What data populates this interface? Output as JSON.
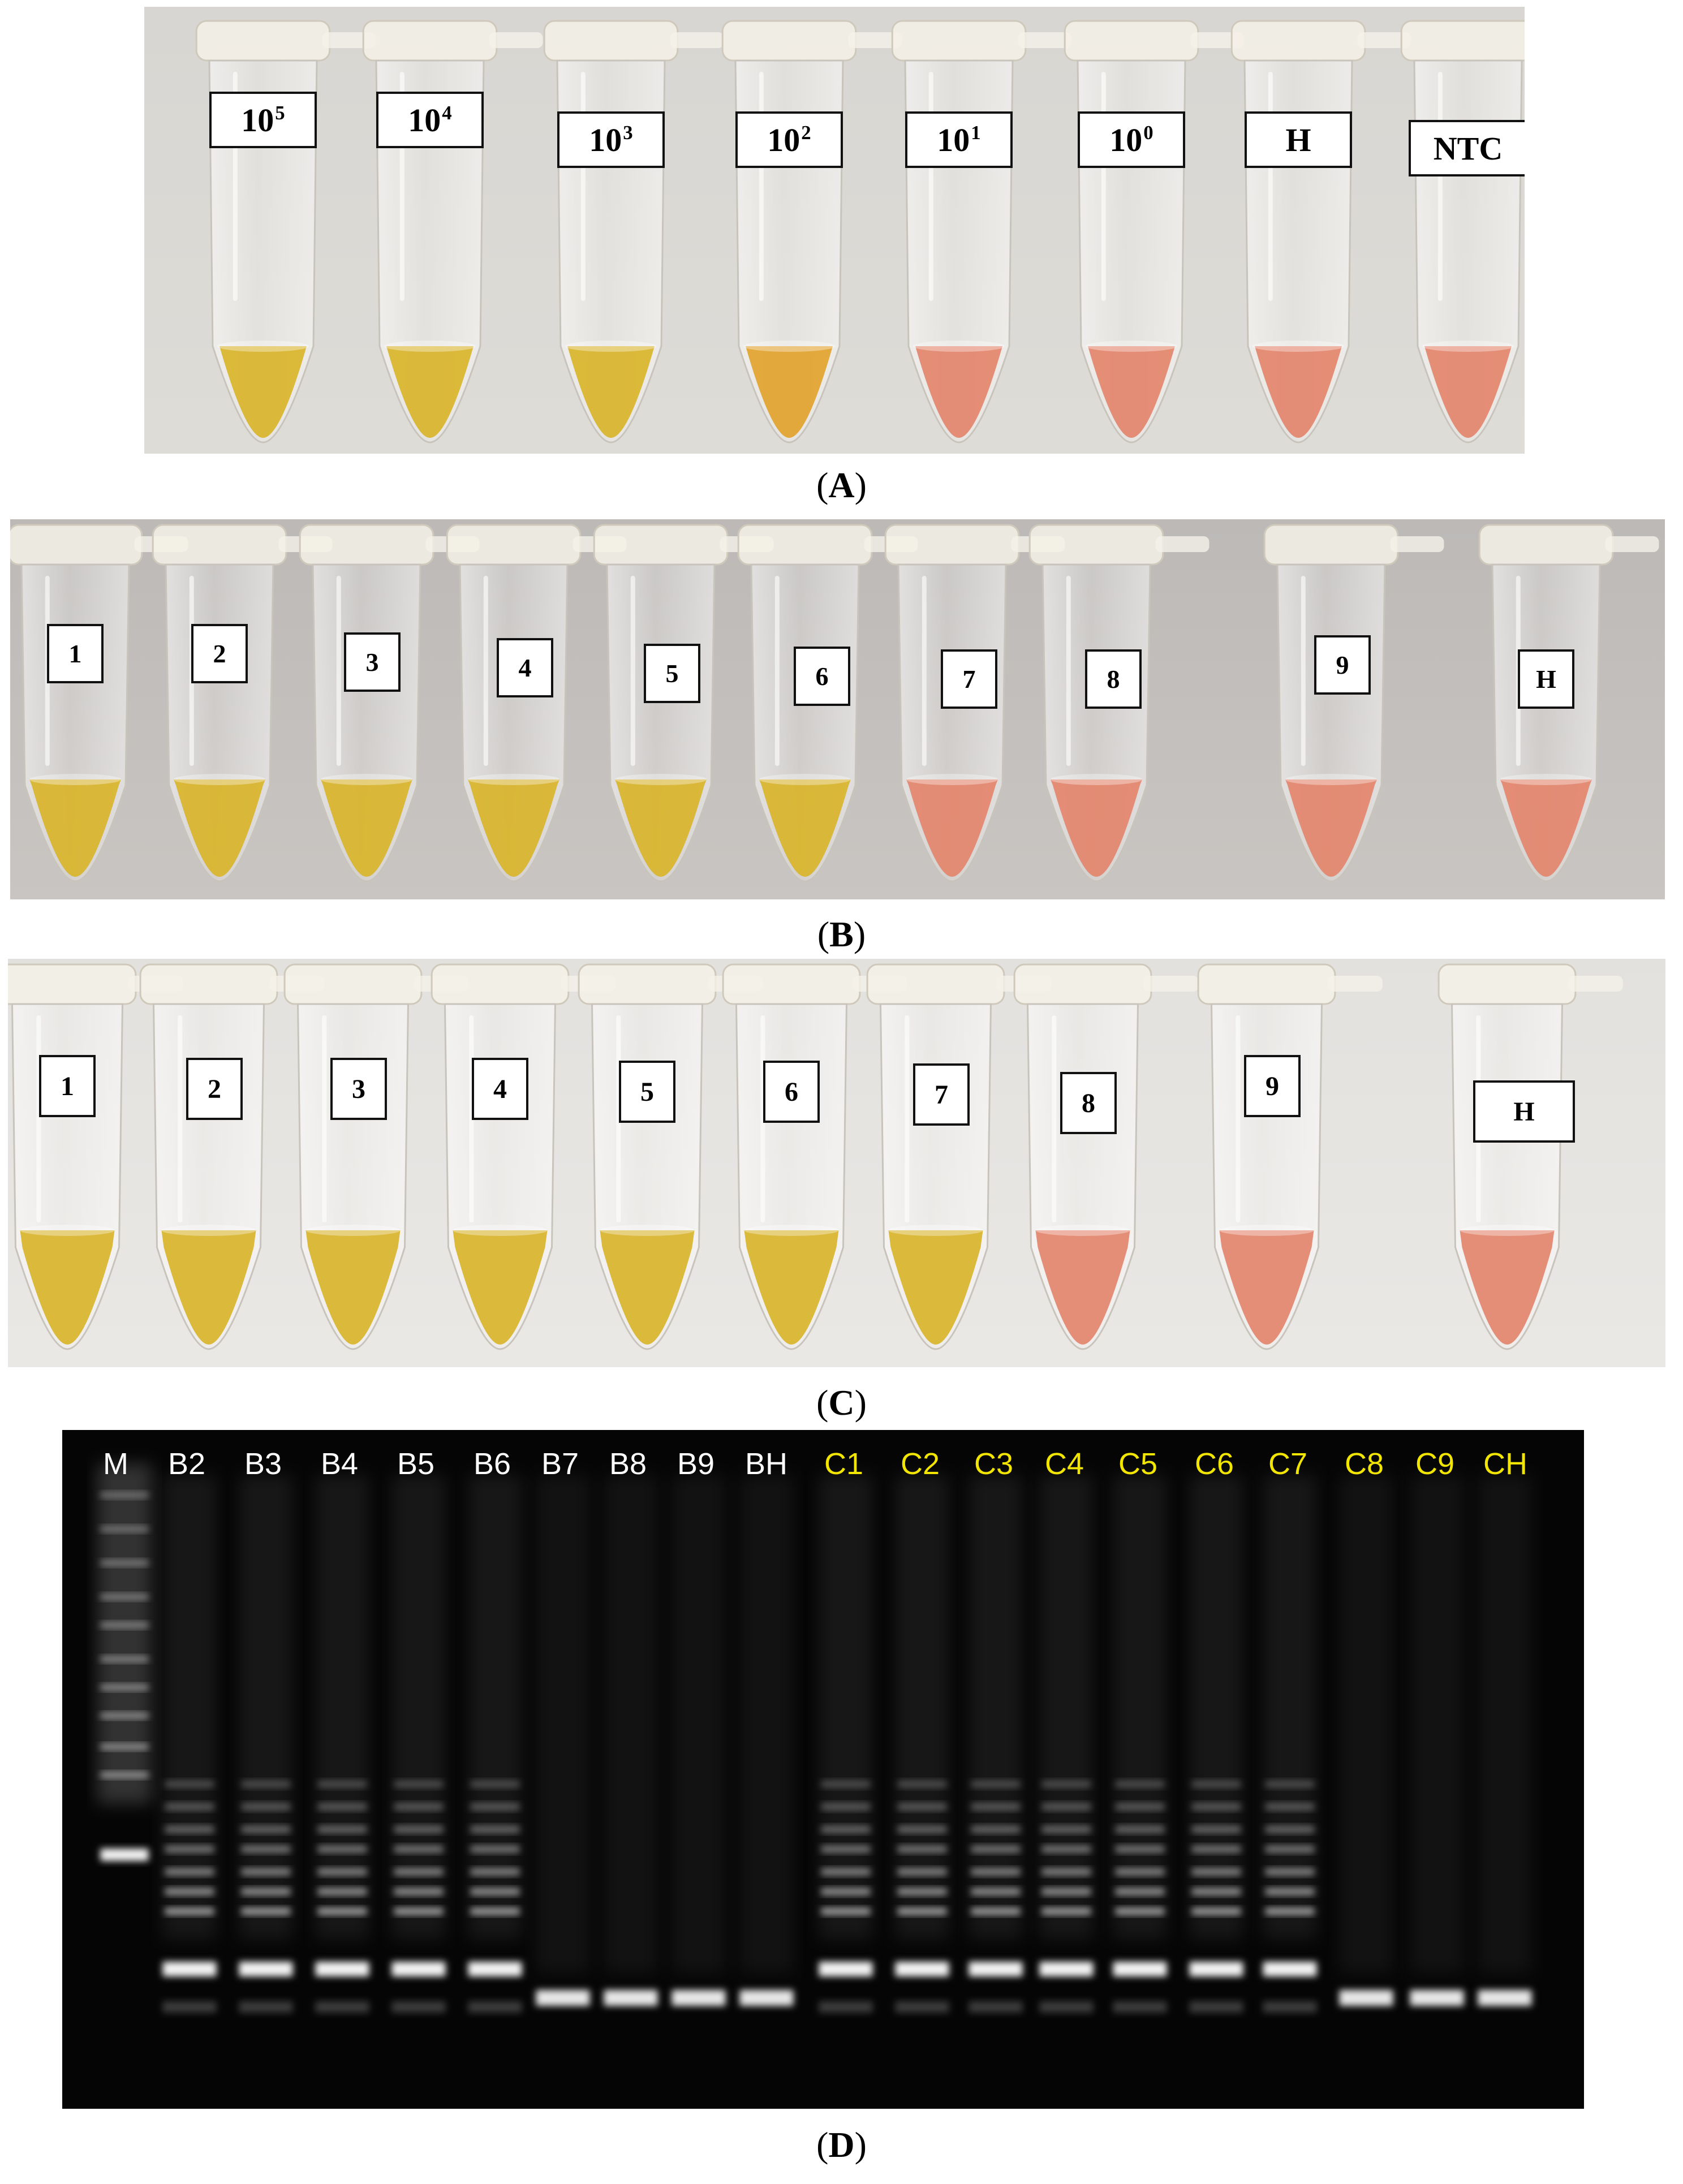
{
  "colors": {
    "yellow": "#d9b42a",
    "orange_yellow": "#e2a32e",
    "pink": "#e4866c",
    "gel_background": "#000000",
    "gel_label_white": "#ffffff",
    "gel_label_yellow": "#f2e600",
    "band": "#ffffff"
  },
  "panel_a": {
    "caption_letter": "A",
    "tubes": [
      {
        "base": "10",
        "exp": "5",
        "liquid": "yellow"
      },
      {
        "base": "10",
        "exp": "4",
        "liquid": "yellow"
      },
      {
        "base": "10",
        "exp": "3",
        "liquid": "yellow"
      },
      {
        "base": "10",
        "exp": "2",
        "liquid": "orange_yellow"
      },
      {
        "base": "10",
        "exp": "1",
        "liquid": "pink"
      },
      {
        "base": "10",
        "exp": "0",
        "liquid": "pink"
      },
      {
        "base": "H",
        "exp": "",
        "liquid": "pink"
      },
      {
        "base": "NTC",
        "exp": "",
        "liquid": "pink"
      }
    ]
  },
  "panel_b": {
    "caption_letter": "B",
    "tubes": [
      {
        "label": "1",
        "liquid": "yellow"
      },
      {
        "label": "2",
        "liquid": "yellow"
      },
      {
        "label": "3",
        "liquid": "yellow"
      },
      {
        "label": "4",
        "liquid": "yellow"
      },
      {
        "label": "5",
        "liquid": "yellow"
      },
      {
        "label": "6",
        "liquid": "yellow"
      },
      {
        "label": "7",
        "liquid": "pink"
      },
      {
        "label": "8",
        "liquid": "pink"
      },
      {
        "label": "9",
        "liquid": "pink"
      },
      {
        "label": "H",
        "liquid": "pink"
      }
    ]
  },
  "panel_c": {
    "caption_letter": "C",
    "tubes": [
      {
        "label": "1",
        "liquid": "yellow"
      },
      {
        "label": "2",
        "liquid": "yellow"
      },
      {
        "label": "3",
        "liquid": "yellow"
      },
      {
        "label": "4",
        "liquid": "yellow"
      },
      {
        "label": "5",
        "liquid": "yellow"
      },
      {
        "label": "6",
        "liquid": "yellow"
      },
      {
        "label": "7",
        "liquid": "yellow"
      },
      {
        "label": "8",
        "liquid": "pink"
      },
      {
        "label": "9",
        "liquid": "pink"
      },
      {
        "label": "H",
        "liquid": "pink"
      }
    ]
  },
  "panel_d": {
    "caption_letter": "D",
    "lanes": [
      {
        "label": "M",
        "color": "white",
        "pattern": "marker"
      },
      {
        "label": "B2",
        "color": "white",
        "pattern": "ladder"
      },
      {
        "label": "B3",
        "color": "white",
        "pattern": "ladder"
      },
      {
        "label": "B4",
        "color": "white",
        "pattern": "ladder"
      },
      {
        "label": "B5",
        "color": "white",
        "pattern": "ladder"
      },
      {
        "label": "B6",
        "color": "white",
        "pattern": "ladder"
      },
      {
        "label": "B7",
        "color": "white",
        "pattern": "primer"
      },
      {
        "label": "B8",
        "color": "white",
        "pattern": "primer"
      },
      {
        "label": "B9",
        "color": "white",
        "pattern": "primer"
      },
      {
        "label": "BH",
        "color": "white",
        "pattern": "primer"
      },
      {
        "label": "C1",
        "color": "yellow",
        "pattern": "ladder"
      },
      {
        "label": "C2",
        "color": "yellow",
        "pattern": "ladder"
      },
      {
        "label": "C3",
        "color": "yellow",
        "pattern": "ladder"
      },
      {
        "label": "C4",
        "color": "yellow",
        "pattern": "ladder"
      },
      {
        "label": "C5",
        "color": "yellow",
        "pattern": "ladder"
      },
      {
        "label": "C6",
        "color": "yellow",
        "pattern": "ladder"
      },
      {
        "label": "C7",
        "color": "yellow",
        "pattern": "ladder"
      },
      {
        "label": "C8",
        "color": "yellow",
        "pattern": "primer"
      },
      {
        "label": "C9",
        "color": "yellow",
        "pattern": "primer"
      },
      {
        "label": "CH",
        "color": "yellow",
        "pattern": "primer"
      }
    ]
  }
}
